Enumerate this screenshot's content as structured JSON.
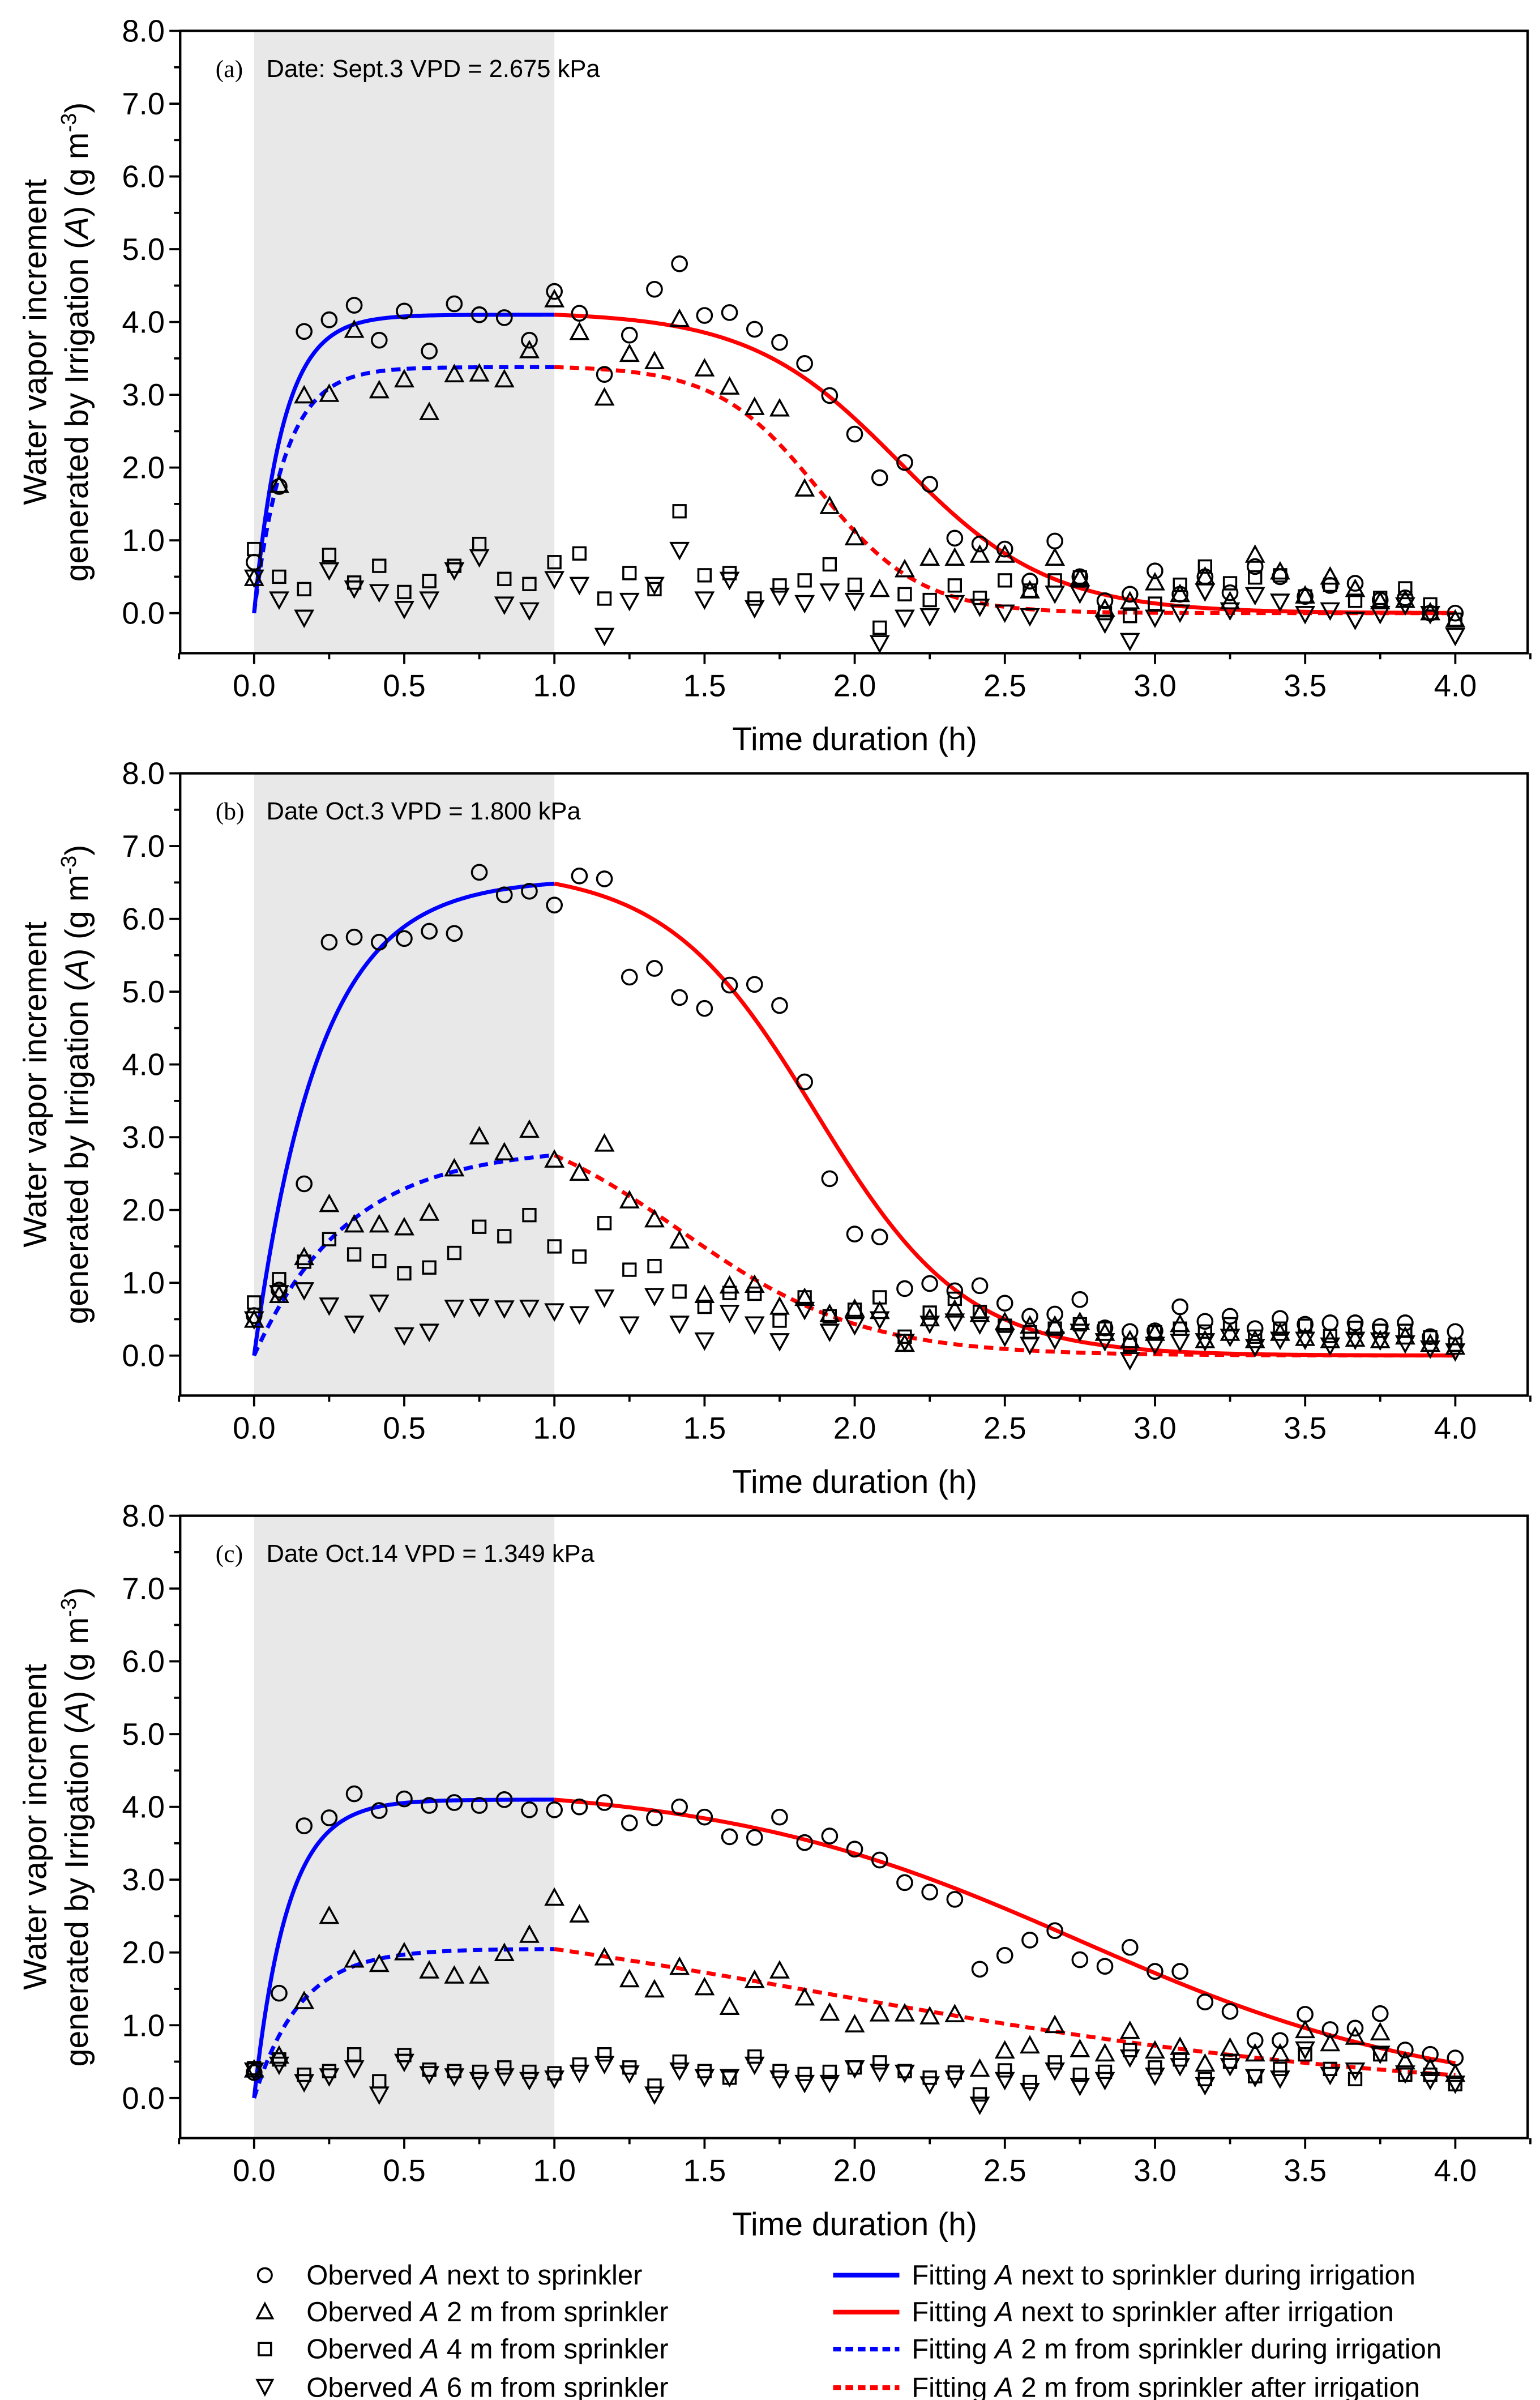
{
  "figure": {
    "xlabel": "Time duration (h)",
    "ylabel_line1": "Water vapor increment",
    "ylabel_line2_pre": "generated by Irrigation (",
    "ylabel_line2_var": "A",
    "ylabel_line2_mid": ") (g m",
    "ylabel_line2_sup": "-3",
    "ylabel_line2_post": ")",
    "irrigation_shading_h": [
      0,
      1.0
    ],
    "colors": {
      "during": "#0000ff",
      "after": "#ff0000",
      "markers": "#000000",
      "shading": "#e8e8e8"
    }
  },
  "legend": {
    "position": "bottom",
    "markers": [
      {
        "pre": "Oberved ",
        "var": "A",
        "post": " next to sprinkler",
        "symbol": "circle"
      },
      {
        "pre": "Oberved ",
        "var": "A",
        "post": " 2 m  from sprinkler",
        "symbol": "triangle-up"
      },
      {
        "pre": "Oberved ",
        "var": "A",
        "post": " 4 m  from sprinkler",
        "symbol": "square"
      },
      {
        "pre": "Oberved ",
        "var": "A",
        "post": " 6 m  from sprinkler",
        "symbol": "triangle-down"
      }
    ],
    "lines": [
      {
        "pre": "Fitting ",
        "var": "A",
        "post": " next to sprinkler during irrigation",
        "color": "#0000ff",
        "style": "solid"
      },
      {
        "pre": "Fitting ",
        "var": "A",
        "post": " next to sprinkler after irrigation",
        "color": "#ff0000",
        "style": "solid"
      },
      {
        "pre": "Fitting ",
        "var": "A",
        "post": " 2 m from sprinkler during irrigation",
        "color": "#0000ff",
        "style": "dashed"
      },
      {
        "pre": "Fitting ",
        "var": "A",
        "post": " 2 m from sprinkler after irrigation",
        "color": "#ff0000",
        "style": "dashed"
      }
    ]
  },
  "chart_data": [
    {
      "type": "scatter",
      "panel": "(a)",
      "title": "Date: Sept.3  VPD = 2.675 kPa",
      "xlabel": "Time duration (h)",
      "ylabel": "Water vapor increment generated by Irrigation (A) (g m-3)",
      "xlim": [
        -0.25,
        4.25
      ],
      "ylim": [
        -0.55,
        8.0
      ],
      "xticks": [
        "0.0",
        "0.5",
        "1.0",
        "1.5",
        "2.0",
        "2.5",
        "3.0",
        "3.5",
        "4.0"
      ],
      "yticks": [
        "0.0",
        "1.0",
        "2.0",
        "3.0",
        "4.0",
        "5.0",
        "6.0",
        "7.0",
        "8.0"
      ],
      "x_start": 0,
      "x_step": 0.08333,
      "n_points": 49,
      "series": [
        {
          "name": "Oberved A next to sprinkler",
          "symbol": "circle",
          "values": [
            0.7,
            1.74,
            3.87,
            4.03,
            4.23,
            3.75,
            4.15,
            3.6,
            4.25,
            4.1,
            4.06,
            3.75,
            4.42,
            4.12,
            3.28,
            3.82,
            4.45,
            4.8,
            4.09,
            4.13,
            3.9,
            3.72,
            3.43,
            2.99,
            2.46,
            1.86,
            2.07,
            1.77,
            1.03,
            0.95,
            0.88,
            0.44,
            0.99,
            0.5,
            0.17,
            0.26,
            0.58,
            0.26,
            0.5,
            0.28,
            0.64,
            0.5,
            0.23,
            0.38,
            0.41,
            0.18,
            0.21,
            0.0,
            0.0
          ]
        },
        {
          "name": "Oberved A 2 m from sprinkler",
          "symbol": "triangle-up",
          "values": [
            0.47,
            1.75,
            2.98,
            3.0,
            3.88,
            3.05,
            3.2,
            2.75,
            3.27,
            3.28,
            3.2,
            3.6,
            4.3,
            3.85,
            2.95,
            3.55,
            3.45,
            4.03,
            3.35,
            3.1,
            2.82,
            2.8,
            1.7,
            1.46,
            1.03,
            0.32,
            0.59,
            0.75,
            0.75,
            0.79,
            0.79,
            0.3,
            0.75,
            0.47,
            0.05,
            0.15,
            0.41,
            0.25,
            0.49,
            0.15,
            0.79,
            0.56,
            0.23,
            0.49,
            0.32,
            0.15,
            0.17,
            0.0,
            -0.1
          ]
        },
        {
          "name": "Oberved A 4 m from sprinkler",
          "symbol": "square",
          "values": [
            0.88,
            0.5,
            0.33,
            0.8,
            0.42,
            0.65,
            0.29,
            0.44,
            0.65,
            0.95,
            0.47,
            0.4,
            0.7,
            0.82,
            0.2,
            0.55,
            0.33,
            1.4,
            0.52,
            0.55,
            0.2,
            0.38,
            0.45,
            0.67,
            0.39,
            -0.2,
            0.26,
            0.18,
            0.38,
            0.21,
            0.45,
            0.31,
            0.45,
            0.49,
            0.0,
            -0.04,
            0.13,
            0.39,
            0.64,
            0.41,
            0.49,
            0.52,
            0.23,
            0.39,
            0.17,
            0.21,
            0.34,
            0.12,
            -0.09
          ]
        },
        {
          "name": "Oberved A 6 m from sprinkler",
          "symbol": "triangle-down",
          "values": [
            0.5,
            0.2,
            -0.05,
            0.6,
            0.35,
            0.3,
            0.07,
            0.2,
            0.6,
            0.78,
            0.13,
            0.05,
            0.48,
            0.4,
            -0.3,
            0.18,
            0.4,
            0.88,
            0.2,
            0.47,
            0.08,
            0.25,
            0.15,
            0.31,
            0.18,
            -0.4,
            -0.05,
            -0.03,
            0.15,
            0.1,
            0.02,
            -0.03,
            0.28,
            0.28,
            -0.13,
            -0.37,
            -0.05,
            0.02,
            0.31,
            0.05,
            0.26,
            0.17,
            0.0,
            0.05,
            -0.08,
            0.0,
            0.12,
            0.0,
            -0.3
          ]
        }
      ],
      "fits": [
        {
          "name": "next to sprinkler",
          "during": {
            "model": "Amax*(1-exp(-k*t))",
            "Amax": 4.1,
            "k": 10.3
          },
          "after": {
            "model": "logistic decay",
            "t50": 2.15,
            "s": 0.25
          },
          "style": "solid"
        },
        {
          "name": "2 m from sprinkler",
          "during": {
            "model": "Amax*(1-exp(-k*t))",
            "Amax": 3.38,
            "k": 9.8
          },
          "after": {
            "model": "logistic decay",
            "t50": 1.88,
            "s": 0.17
          },
          "style": "dashed"
        }
      ]
    },
    {
      "type": "scatter",
      "panel": "(b)",
      "title": "Date Oct.3  VPD = 1.800 kPa",
      "xlabel": "Time duration (h)",
      "ylabel": "Water vapor increment generated by Irrigation (A) (g m-3)",
      "xlim": [
        -0.25,
        4.25
      ],
      "ylim": [
        -0.55,
        8.0
      ],
      "xticks": [
        "0.0",
        "0.5",
        "1.0",
        "1.5",
        "2.0",
        "2.5",
        "3.0",
        "3.5",
        "4.0"
      ],
      "yticks": [
        "0.0",
        "1.0",
        "2.0",
        "3.0",
        "4.0",
        "5.0",
        "6.0",
        "7.0",
        "8.0"
      ],
      "x_start": 0,
      "x_step": 0.08333,
      "n_points": 49,
      "series": [
        {
          "name": "Oberved A next to sprinkler",
          "symbol": "circle",
          "values": [
            0.55,
            0.9,
            2.36,
            5.68,
            5.75,
            5.68,
            5.73,
            5.83,
            5.8,
            6.64,
            6.33,
            6.38,
            6.19,
            6.59,
            6.55,
            5.2,
            5.32,
            4.92,
            4.77,
            5.09,
            5.1,
            4.81,
            3.76,
            2.43,
            1.67,
            1.63,
            0.92,
            0.99,
            0.89,
            0.96,
            0.72,
            0.54,
            0.57,
            0.77,
            0.38,
            0.33,
            0.34,
            0.67,
            0.47,
            0.54,
            0.37,
            0.51,
            0.43,
            0.45,
            0.45,
            0.4,
            0.45,
            0.26,
            0.33
          ]
        },
        {
          "name": "Oberved A 2 m from sprinkler",
          "symbol": "triangle-up",
          "values": [
            0.48,
            0.82,
            1.34,
            2.07,
            1.79,
            1.79,
            1.75,
            1.95,
            2.56,
            3.0,
            2.78,
            3.09,
            2.68,
            2.5,
            2.9,
            2.12,
            1.86,
            1.57,
            0.82,
            0.95,
            0.96,
            0.66,
            0.78,
            0.56,
            0.63,
            0.6,
            0.15,
            0.5,
            0.62,
            0.56,
            0.45,
            0.4,
            0.4,
            0.45,
            0.3,
            0.2,
            0.3,
            0.42,
            0.2,
            0.3,
            0.2,
            0.3,
            0.23,
            0.2,
            0.22,
            0.2,
            0.25,
            0.15,
            0.11
          ]
        },
        {
          "name": "Oberved A 4 m from sprinkler",
          "symbol": "square",
          "values": [
            0.73,
            1.05,
            1.29,
            1.6,
            1.39,
            1.3,
            1.13,
            1.21,
            1.41,
            1.77,
            1.64,
            1.93,
            1.5,
            1.36,
            1.82,
            1.18,
            1.23,
            0.88,
            0.67,
            0.86,
            0.85,
            0.48,
            0.8,
            0.54,
            0.63,
            0.8,
            0.26,
            0.59,
            0.78,
            0.6,
            0.41,
            0.32,
            0.37,
            0.43,
            0.37,
            0.15,
            0.32,
            0.37,
            0.33,
            0.43,
            0.26,
            0.37,
            0.41,
            0.27,
            0.38,
            0.34,
            0.34,
            0.25,
            0.15
          ]
        },
        {
          "name": "Oberved A 6 m from sprinkler",
          "symbol": "triangle-down",
          "values": [
            0.51,
            0.87,
            0.91,
            0.7,
            0.45,
            0.74,
            0.29,
            0.34,
            0.67,
            0.68,
            0.66,
            0.67,
            0.62,
            0.58,
            0.81,
            0.44,
            0.83,
            0.45,
            0.22,
            0.6,
            0.44,
            0.21,
            0.64,
            0.34,
            0.43,
            0.51,
            0.2,
            0.45,
            0.48,
            0.44,
            0.27,
            0.16,
            0.23,
            0.34,
            0.21,
            -0.05,
            0.16,
            0.2,
            0.21,
            0.27,
            0.13,
            0.23,
            0.23,
            0.15,
            0.23,
            0.22,
            0.18,
            0.11,
            0.07
          ]
        }
      ],
      "fits": [
        {
          "name": "next to sprinkler",
          "during": {
            "model": "Amax*(1-exp(-k*t))",
            "Amax": 6.55,
            "k": 4.6
          },
          "after": {
            "model": "logistic decay",
            "t50": 1.87,
            "s": 0.25
          },
          "style": "solid"
        },
        {
          "name": "2 m from sprinkler",
          "during": {
            "model": "Amax*(1-exp(-k*t))",
            "Amax": 2.87,
            "k": 3.2
          },
          "after": {
            "model": "logistic decay",
            "t50": 1.42,
            "s": 0.3
          },
          "style": "dashed"
        }
      ]
    },
    {
      "type": "scatter",
      "panel": "(c)",
      "title": "Date Oct.14  VPD = 1.349 kPa",
      "xlabel": "Time duration (h)",
      "ylabel": "Water vapor increment generated by Irrigation (A) (g m-3)",
      "xlim": [
        -0.25,
        4.25
      ],
      "ylim": [
        -0.55,
        8.0
      ],
      "xticks": [
        "0.0",
        "0.5",
        "1.0",
        "1.5",
        "2.0",
        "2.5",
        "3.0",
        "3.5",
        "4.0"
      ],
      "yticks": [
        "0.0",
        "1.0",
        "2.0",
        "3.0",
        "4.0",
        "5.0",
        "6.0",
        "7.0",
        "8.0"
      ],
      "x_start": 0,
      "x_step": 0.08333,
      "n_points": 49,
      "series": [
        {
          "name": "Oberved A next to sprinkler",
          "symbol": "circle",
          "values": [
            0.35,
            1.44,
            3.74,
            3.85,
            4.18,
            3.95,
            4.11,
            4.02,
            4.06,
            4.02,
            4.1,
            3.96,
            3.96,
            4.0,
            4.06,
            3.78,
            3.85,
            4.0,
            3.86,
            3.59,
            3.58,
            3.86,
            3.51,
            3.6,
            3.42,
            3.27,
            2.96,
            2.83,
            2.73,
            1.77,
            1.96,
            2.17,
            2.3,
            1.9,
            1.81,
            2.07,
            1.74,
            1.74,
            1.32,
            1.19,
            0.79,
            0.79,
            1.15,
            0.94,
            0.96,
            1.16,
            0.66,
            0.6,
            0.55
          ]
        },
        {
          "name": "Oberved A 2 m from sprinkler",
          "symbol": "triangle-up",
          "values": [
            0.38,
            0.57,
            1.32,
            2.49,
            1.89,
            1.83,
            1.99,
            1.74,
            1.67,
            1.67,
            1.98,
            2.23,
            2.74,
            2.51,
            1.92,
            1.62,
            1.48,
            1.79,
            1.51,
            1.24,
            1.61,
            1.74,
            1.37,
            1.16,
            1.0,
            1.15,
            1.15,
            1.11,
            1.14,
            0.39,
            0.64,
            0.71,
            0.99,
            0.66,
            0.6,
            0.91,
            0.64,
            0.69,
            0.46,
            0.68,
            0.6,
            0.6,
            0.92,
            0.74,
            0.83,
            0.89,
            0.49,
            0.4,
            0.32
          ]
        },
        {
          "name": "Oberved A 4 m from sprinkler",
          "symbol": "square",
          "values": [
            0.41,
            0.53,
            0.32,
            0.37,
            0.6,
            0.23,
            0.59,
            0.39,
            0.37,
            0.36,
            0.42,
            0.36,
            0.34,
            0.46,
            0.6,
            0.42,
            0.17,
            0.5,
            0.37,
            0.28,
            0.57,
            0.37,
            0.33,
            0.36,
            0.42,
            0.49,
            0.37,
            0.28,
            0.35,
            0.05,
            0.38,
            0.22,
            0.49,
            0.32,
            0.36,
            0.66,
            0.42,
            0.53,
            0.26,
            0.5,
            0.3,
            0.4,
            0.6,
            0.4,
            0.26,
            0.6,
            0.32,
            0.32,
            0.19
          ]
        },
        {
          "name": "Oberved A 6 m from sprinkler",
          "symbol": "triangle-down",
          "values": [
            0.39,
            0.47,
            0.23,
            0.31,
            0.42,
            0.06,
            0.51,
            0.34,
            0.31,
            0.26,
            0.31,
            0.26,
            0.28,
            0.36,
            0.48,
            0.35,
            0.06,
            0.39,
            0.3,
            0.3,
            0.47,
            0.28,
            0.22,
            0.22,
            0.42,
            0.37,
            0.36,
            0.2,
            0.28,
            -0.08,
            0.26,
            0.11,
            0.39,
            0.18,
            0.26,
            0.57,
            0.32,
            0.45,
            0.19,
            0.45,
            0.3,
            0.28,
            0.68,
            0.33,
            0.39,
            0.62,
            0.35,
            0.26,
            0.21
          ]
        }
      ],
      "fits": [
        {
          "name": "next to sprinkler",
          "during": {
            "model": "Amax*(1-exp(-k*t))",
            "Amax": 4.1,
            "k": 9.0
          },
          "after": {
            "model": "logistic decay",
            "t50": 2.75,
            "s": 0.6
          },
          "style": "solid"
        },
        {
          "name": "2 m from sprinkler",
          "during": {
            "model": "Amax*(1-exp(-k*t))",
            "Amax": 2.05,
            "k": 6.5
          },
          "after": {
            "model": "logistic decay",
            "t50": 1.9,
            "s": 1.0
          },
          "style": "dashed"
        }
      ]
    }
  ]
}
